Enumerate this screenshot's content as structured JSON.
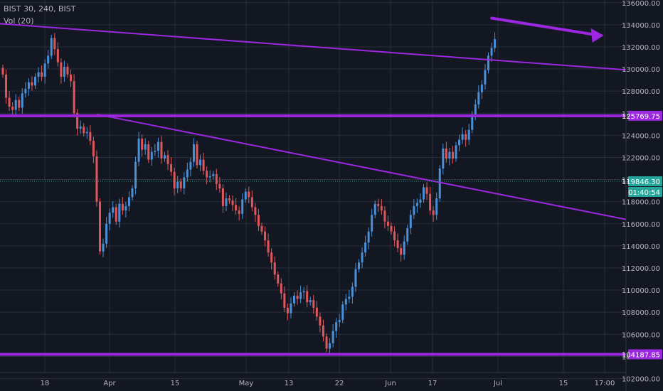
{
  "symbol_info": "BIST 30, 240, BIST",
  "indicator": "Vol (20)",
  "colors": {
    "background": "#131722",
    "grid": "#2a2e39",
    "up": "#4a90d9",
    "down": "#e0575b",
    "trendline": "#9c27e0",
    "price_tag": "#26a69a",
    "axis_text": "#b2b5be"
  },
  "chart_data": {
    "type": "candlestick",
    "title": "BIST 30, 240, BIST",
    "ylim": [
      101000,
      137200
    ],
    "y_ticks": [
      102000,
      104000,
      106000,
      108000,
      110000,
      112000,
      114000,
      116000,
      118000,
      120000,
      122000,
      124000,
      126000,
      128000,
      130000,
      132000,
      134000,
      136000
    ],
    "x_tick_labels": [
      "18",
      "Apr",
      "15",
      "May",
      "13",
      "22",
      "Jun",
      "17",
      "Jul",
      "15",
      "17:00"
    ],
    "grid": true,
    "last_price": "119846.30",
    "countdown": "01:40:54",
    "horizontal_levels": [
      {
        "label": "125769.75",
        "value": 125769.75
      },
      {
        "label": "104187.85",
        "value": 104187.85
      }
    ],
    "trendlines": [
      {
        "from": [
          0,
          134100
        ],
        "to": [
          235,
          129000
        ]
      },
      {
        "from": [
          30,
          125900
        ],
        "to": [
          213,
          115200
        ]
      }
    ],
    "arrow": {
      "from": [
        151,
        134600
      ],
      "to": [
        183,
        133100
      ]
    },
    "candles_close": [
      129500,
      127400,
      126600,
      126300,
      127200,
      126500,
      127800,
      128200,
      128800,
      128500,
      129300,
      129700,
      129300,
      130500,
      131200,
      132800,
      131800,
      130600,
      129300,
      130200,
      129500,
      128900,
      126000,
      124600,
      124800,
      124200,
      124300,
      123500,
      122100,
      118000,
      113500,
      114200,
      116000,
      117000,
      117500,
      116200,
      117800,
      117200,
      117600,
      118400,
      119200,
      121600,
      123700,
      122700,
      123200,
      121800,
      122500,
      122600,
      123400,
      121900,
      122200,
      121400,
      120700,
      119200,
      119800,
      119200,
      120200,
      120900,
      121600,
      123200,
      121300,
      121800,
      120800,
      120200,
      120300,
      120500,
      119600,
      119200,
      117600,
      118300,
      118100,
      117700,
      117200,
      116900,
      118200,
      118900,
      118400,
      117500,
      116800,
      115800,
      115300,
      114500,
      113400,
      112500,
      111400,
      110600,
      109700,
      108400,
      107900,
      108800,
      109500,
      109200,
      109800,
      109900,
      108900,
      109100,
      108400,
      107600,
      106800,
      105800,
      104700,
      105200,
      106300,
      107100,
      107300,
      108700,
      109200,
      109400,
      110300,
      111900,
      112500,
      113400,
      114300,
      115300,
      116800,
      117800,
      117600,
      117200,
      116200,
      115800,
      115300,
      114500,
      113800,
      113200,
      114400,
      115600,
      116800,
      117600,
      117900,
      118200,
      119300,
      118700,
      117200,
      116800,
      118300,
      121000,
      122800,
      121900,
      122500,
      121900,
      123100,
      123600,
      124100,
      123600,
      124500,
      125900,
      126800,
      127900,
      128600,
      129900,
      131200,
      131900,
      132700
    ]
  }
}
